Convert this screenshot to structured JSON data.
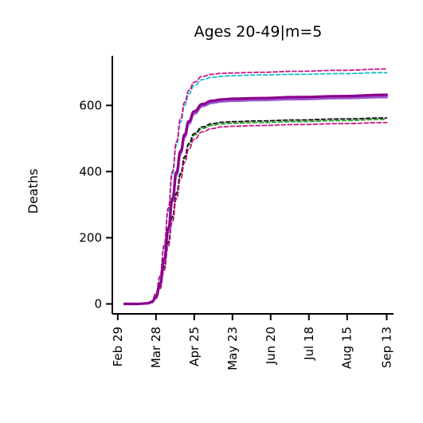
{
  "chart_data": {
    "type": "line",
    "title": "Ages 20-49|m=5",
    "xlabel": "",
    "ylabel": "Deaths",
    "x_ticks": [
      "Feb 29",
      "Mar 28",
      "Apr 25",
      "May 23",
      "Jun 20",
      "Jul 18",
      "Aug 15",
      "Sep 13"
    ],
    "x_tick_dates": [
      "2020-02-29",
      "2020-03-28",
      "2020-04-25",
      "2020-05-23",
      "2020-06-20",
      "2020-07-18",
      "2020-08-15",
      "2020-09-13"
    ],
    "y_ticks": [
      0,
      200,
      400,
      600
    ],
    "xlim": [
      "2020-02-25",
      "2020-09-18"
    ],
    "ylim": [
      -30,
      750
    ],
    "grid": false,
    "legend": "none",
    "series": [
      {
        "style": "dashed",
        "color": "#17becf",
        "x": [
          "2020-03-05",
          "2020-03-15",
          "2020-03-22",
          "2020-03-25",
          "2020-03-28",
          "2020-03-31",
          "2020-04-03",
          "2020-04-06",
          "2020-04-09",
          "2020-04-12",
          "2020-04-15",
          "2020-04-18",
          "2020-04-21",
          "2020-04-25",
          "2020-05-01",
          "2020-05-08",
          "2020-05-15",
          "2020-05-23",
          "2020-06-10",
          "2020-07-10",
          "2020-08-10",
          "2020-09-13"
        ],
        "y": [
          0,
          0,
          2,
          8,
          30,
          80,
          170,
          280,
          390,
          480,
          550,
          600,
          635,
          660,
          678,
          685,
          688,
          690,
          692,
          694,
          696,
          699
        ]
      },
      {
        "style": "dashed",
        "color": "#c71585",
        "x": [
          "2020-03-05",
          "2020-03-15",
          "2020-03-22",
          "2020-03-25",
          "2020-03-28",
          "2020-03-31",
          "2020-04-03",
          "2020-04-06",
          "2020-04-09",
          "2020-04-12",
          "2020-04-15",
          "2020-04-18",
          "2020-04-21",
          "2020-04-25",
          "2020-05-01",
          "2020-05-08",
          "2020-05-15",
          "2020-05-23",
          "2020-06-10",
          "2020-07-10",
          "2020-08-10",
          "2020-09-13"
        ],
        "y": [
          0,
          0,
          2,
          9,
          32,
          85,
          178,
          290,
          400,
          490,
          560,
          610,
          645,
          670,
          688,
          694,
          697,
          698,
          700,
          703,
          706,
          710
        ]
      },
      {
        "style": "solid",
        "color": "#9b59d0",
        "x": [
          "2020-03-05",
          "2020-03-15",
          "2020-03-22",
          "2020-03-25",
          "2020-03-28",
          "2020-03-31",
          "2020-04-03",
          "2020-04-06",
          "2020-04-09",
          "2020-04-12",
          "2020-04-15",
          "2020-04-18",
          "2020-04-21",
          "2020-04-25",
          "2020-05-01",
          "2020-05-08",
          "2020-05-15",
          "2020-05-23",
          "2020-06-10",
          "2020-07-10",
          "2020-08-10",
          "2020-09-13"
        ],
        "y": [
          0,
          0,
          2,
          6,
          22,
          60,
          130,
          220,
          310,
          390,
          455,
          505,
          545,
          575,
          598,
          608,
          612,
          614,
          616,
          619,
          622,
          625
        ]
      },
      {
        "style": "solid",
        "color": "#8b008b",
        "x": [
          "2020-03-05",
          "2020-03-15",
          "2020-03-22",
          "2020-03-25",
          "2020-03-28",
          "2020-03-31",
          "2020-04-03",
          "2020-04-06",
          "2020-04-09",
          "2020-04-12",
          "2020-04-15",
          "2020-04-18",
          "2020-04-21",
          "2020-04-25",
          "2020-05-01",
          "2020-05-08",
          "2020-05-15",
          "2020-05-23",
          "2020-06-10",
          "2020-07-10",
          "2020-08-10",
          "2020-09-13"
        ],
        "y": [
          0,
          0,
          2,
          6,
          22,
          62,
          135,
          228,
          318,
          398,
          462,
          512,
          552,
          582,
          604,
          614,
          618,
          620,
          622,
          625,
          628,
          632
        ]
      },
      {
        "style": "dashed",
        "color": "#2ca02c",
        "x": [
          "2020-03-05",
          "2020-03-15",
          "2020-03-22",
          "2020-03-25",
          "2020-03-28",
          "2020-03-31",
          "2020-04-03",
          "2020-04-06",
          "2020-04-09",
          "2020-04-12",
          "2020-04-15",
          "2020-04-18",
          "2020-04-21",
          "2020-04-25",
          "2020-05-01",
          "2020-05-08",
          "2020-05-15",
          "2020-05-23",
          "2020-06-10",
          "2020-07-10",
          "2020-08-10",
          "2020-09-13"
        ],
        "y": [
          0,
          0,
          1,
          5,
          18,
          50,
          110,
          185,
          260,
          330,
          390,
          440,
          480,
          510,
          530,
          540,
          544,
          546,
          548,
          551,
          554,
          558
        ]
      },
      {
        "style": "dashed",
        "color": "#111111",
        "x": [
          "2020-03-05",
          "2020-03-15",
          "2020-03-22",
          "2020-03-25",
          "2020-03-28",
          "2020-03-31",
          "2020-04-03",
          "2020-04-06",
          "2020-04-09",
          "2020-04-12",
          "2020-04-15",
          "2020-04-18",
          "2020-04-21",
          "2020-04-25",
          "2020-05-01",
          "2020-05-08",
          "2020-05-15",
          "2020-05-23",
          "2020-06-10",
          "2020-07-10",
          "2020-08-10",
          "2020-09-13"
        ],
        "y": [
          0,
          0,
          1,
          5,
          18,
          52,
          112,
          188,
          265,
          335,
          395,
          445,
          485,
          515,
          535,
          545,
          549,
          551,
          553,
          556,
          559,
          562
        ]
      },
      {
        "style": "dashed",
        "color": "#c71585",
        "x": [
          "2020-03-05",
          "2020-03-15",
          "2020-03-22",
          "2020-03-25",
          "2020-03-28",
          "2020-03-31",
          "2020-04-03",
          "2020-04-06",
          "2020-04-09",
          "2020-04-12",
          "2020-04-15",
          "2020-04-18",
          "2020-04-21",
          "2020-04-25",
          "2020-05-01",
          "2020-05-08",
          "2020-05-15",
          "2020-05-23",
          "2020-06-10",
          "2020-07-10",
          "2020-08-10",
          "2020-09-13"
        ],
        "y": [
          0,
          0,
          1,
          4,
          16,
          46,
          102,
          175,
          248,
          318,
          378,
          428,
          468,
          498,
          520,
          530,
          535,
          537,
          539,
          542,
          545,
          548
        ]
      }
    ]
  }
}
